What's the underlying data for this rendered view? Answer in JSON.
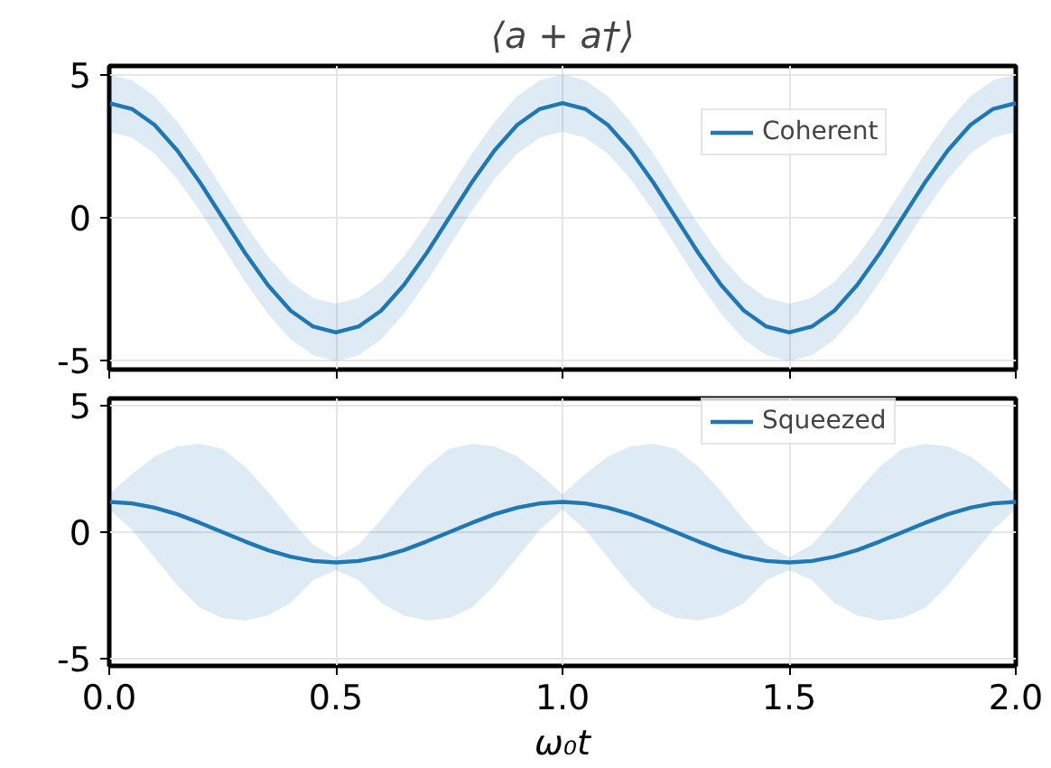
{
  "chart_data": [
    {
      "type": "line",
      "title": "⟨a + a†⟩",
      "x": [
        0,
        0.05,
        0.1,
        0.15,
        0.2,
        0.25,
        0.3,
        0.35,
        0.4,
        0.45,
        0.5,
        0.55,
        0.6,
        0.65,
        0.7,
        0.75,
        0.8,
        0.85,
        0.9,
        0.95,
        1.0,
        1.05,
        1.1,
        1.15,
        1.2,
        1.25,
        1.3,
        1.35,
        1.4,
        1.45,
        1.5,
        1.55,
        1.6,
        1.65,
        1.7,
        1.75,
        1.8,
        1.85,
        1.9,
        1.95,
        2.0
      ],
      "series": [
        {
          "name": "Coherent",
          "color": "#1f77b4",
          "values": [
            4,
            3.8,
            3.24,
            2.35,
            1.24,
            0,
            -1.24,
            -2.35,
            -3.24,
            -3.8,
            -4,
            -3.8,
            -3.24,
            -2.35,
            -1.24,
            0,
            1.24,
            2.35,
            3.24,
            3.8,
            4,
            3.8,
            3.24,
            2.35,
            1.24,
            0,
            -1.24,
            -2.35,
            -3.24,
            -3.8,
            -4,
            -3.8,
            -3.24,
            -2.35,
            -1.24,
            0,
            1.24,
            2.35,
            3.24,
            3.8,
            4
          ],
          "lower": [
            3,
            2.8,
            2.24,
            1.35,
            0.24,
            -1,
            -2.24,
            -3.35,
            -4.24,
            -4.8,
            -5,
            -4.8,
            -4.24,
            -3.35,
            -2.24,
            -1,
            0.24,
            1.35,
            2.24,
            2.8,
            3,
            2.8,
            2.24,
            1.35,
            0.24,
            -1,
            -2.24,
            -3.35,
            -4.24,
            -4.8,
            -5,
            -4.8,
            -4.24,
            -3.35,
            -2.24,
            -1,
            0.24,
            1.35,
            2.24,
            2.8,
            3
          ],
          "upper": [
            5,
            4.8,
            4.24,
            3.35,
            2.24,
            1,
            -0.24,
            -1.35,
            -2.24,
            -2.8,
            -3,
            -2.8,
            -2.24,
            -1.35,
            -0.24,
            1,
            2.24,
            3.35,
            4.24,
            4.8,
            5,
            4.8,
            4.24,
            3.35,
            2.24,
            1,
            -0.24,
            -1.35,
            -2.24,
            -2.8,
            -3,
            -2.8,
            -2.24,
            -1.35,
            -0.24,
            1,
            2.24,
            3.35,
            4.24,
            4.8,
            5
          ]
        }
      ],
      "xlim": [
        0,
        2
      ],
      "ylim": [
        -5.3,
        5.3
      ],
      "yticks": [
        -5,
        0,
        5
      ],
      "xticks": [
        {
          "value": 0,
          "label": null
        },
        {
          "value": 0.5,
          "label": null
        },
        {
          "value": 1,
          "label": null
        },
        {
          "value": 1.5,
          "label": null
        },
        {
          "value": 2,
          "label": null
        }
      ],
      "tick_labels": "y",
      "grid": true,
      "legend": "top right"
    },
    {
      "type": "line",
      "xlabel": "ω₀t",
      "x": [
        0,
        0.05,
        0.1,
        0.15,
        0.2,
        0.25,
        0.3,
        0.35,
        0.4,
        0.45,
        0.5,
        0.55,
        0.6,
        0.65,
        0.7,
        0.75,
        0.8,
        0.85,
        0.9,
        0.95,
        1.0,
        1.05,
        1.1,
        1.15,
        1.2,
        1.25,
        1.3,
        1.35,
        1.4,
        1.45,
        1.5,
        1.55,
        1.6,
        1.65,
        1.7,
        1.75,
        1.8,
        1.85,
        1.9,
        1.95,
        2.0
      ],
      "series": [
        {
          "name": "Squeezed",
          "color": "#1f77b4",
          "values": [
            1.2,
            1.14,
            0.97,
            0.71,
            0.37,
            0,
            -0.37,
            -0.71,
            -0.97,
            -1.14,
            -1.2,
            -1.14,
            -0.97,
            -0.71,
            -0.37,
            0,
            0.37,
            0.71,
            0.97,
            1.14,
            1.2,
            1.14,
            0.97,
            0.71,
            0.37,
            0,
            -0.37,
            -0.71,
            -0.97,
            -1.14,
            -1.2,
            -1.14,
            -0.97,
            -0.71,
            -0.37,
            0,
            0.37,
            0.71,
            0.97,
            1.14,
            1.2
          ],
          "lower": [
            0.9,
            0.1,
            -1.0,
            -2.1,
            -3.0,
            -3.4,
            -3.5,
            -3.3,
            -2.8,
            -1.9,
            -1.5,
            -1.9,
            -2.8,
            -3.3,
            -3.5,
            -3.4,
            -3.0,
            -2.1,
            -1.0,
            0.1,
            0.9,
            0.1,
            -1.0,
            -2.1,
            -3.0,
            -3.4,
            -3.5,
            -3.3,
            -2.8,
            -1.9,
            -1.5,
            -1.9,
            -2.8,
            -3.3,
            -3.5,
            -3.4,
            -3.0,
            -2.1,
            -1.0,
            0.1,
            0.9
          ],
          "upper": [
            1.5,
            2.3,
            3.0,
            3.4,
            3.5,
            3.3,
            2.6,
            1.6,
            0.5,
            -0.5,
            -1.0,
            -0.5,
            0.5,
            1.6,
            2.6,
            3.3,
            3.5,
            3.4,
            3.0,
            2.3,
            1.5,
            2.3,
            3.0,
            3.4,
            3.5,
            3.3,
            2.6,
            1.6,
            0.5,
            -0.5,
            -1.0,
            -0.5,
            0.5,
            1.6,
            2.6,
            3.3,
            3.5,
            3.4,
            3.0,
            2.3,
            1.5
          ]
        }
      ],
      "xlim": [
        0,
        2
      ],
      "ylim": [
        -5.3,
        5.3
      ],
      "yticks": [
        -5,
        0,
        5
      ],
      "xticks": [
        {
          "value": 0,
          "label": "0.0"
        },
        {
          "value": 0.5,
          "label": "0.5"
        },
        {
          "value": 1,
          "label": "1.0"
        },
        {
          "value": 1.5,
          "label": "1.5"
        },
        {
          "value": 2,
          "label": "2.0"
        }
      ],
      "grid": true,
      "legend": "top right"
    }
  ]
}
